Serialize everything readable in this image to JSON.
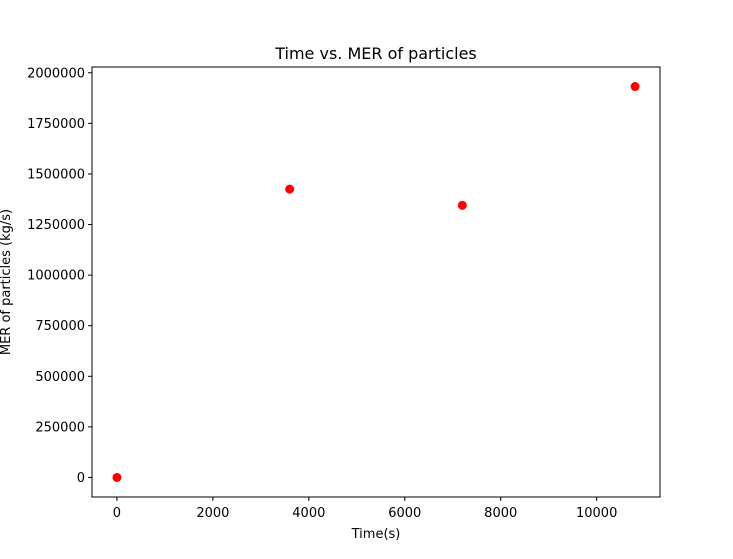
{
  "chart_data": {
    "type": "scatter",
    "title": "Time vs. MER of particles",
    "xlabel": "Time(s)",
    "ylabel": "MER of particles (kg/s)",
    "x": [
      0,
      3600,
      7200,
      10800
    ],
    "y": [
      0,
      1425000,
      1345000,
      1932000
    ],
    "marker_color": "#ff0000",
    "xlim": [
      -520,
      11320
    ],
    "ylim": [
      -96600,
      2028600
    ],
    "xticks": [
      0,
      2000,
      4000,
      6000,
      8000,
      10000
    ],
    "xtick_labels": [
      "0",
      "2000",
      "4000",
      "6000",
      "8000",
      "10000"
    ],
    "yticks": [
      0,
      250000,
      500000,
      750000,
      1000000,
      1250000,
      1500000,
      1750000,
      2000000
    ],
    "ytick_labels": [
      "0",
      "250000",
      "500000",
      "750000",
      "1000000",
      "1250000",
      "1500000",
      "1750000",
      "2000000"
    ],
    "grid": false,
    "legend": "none"
  }
}
